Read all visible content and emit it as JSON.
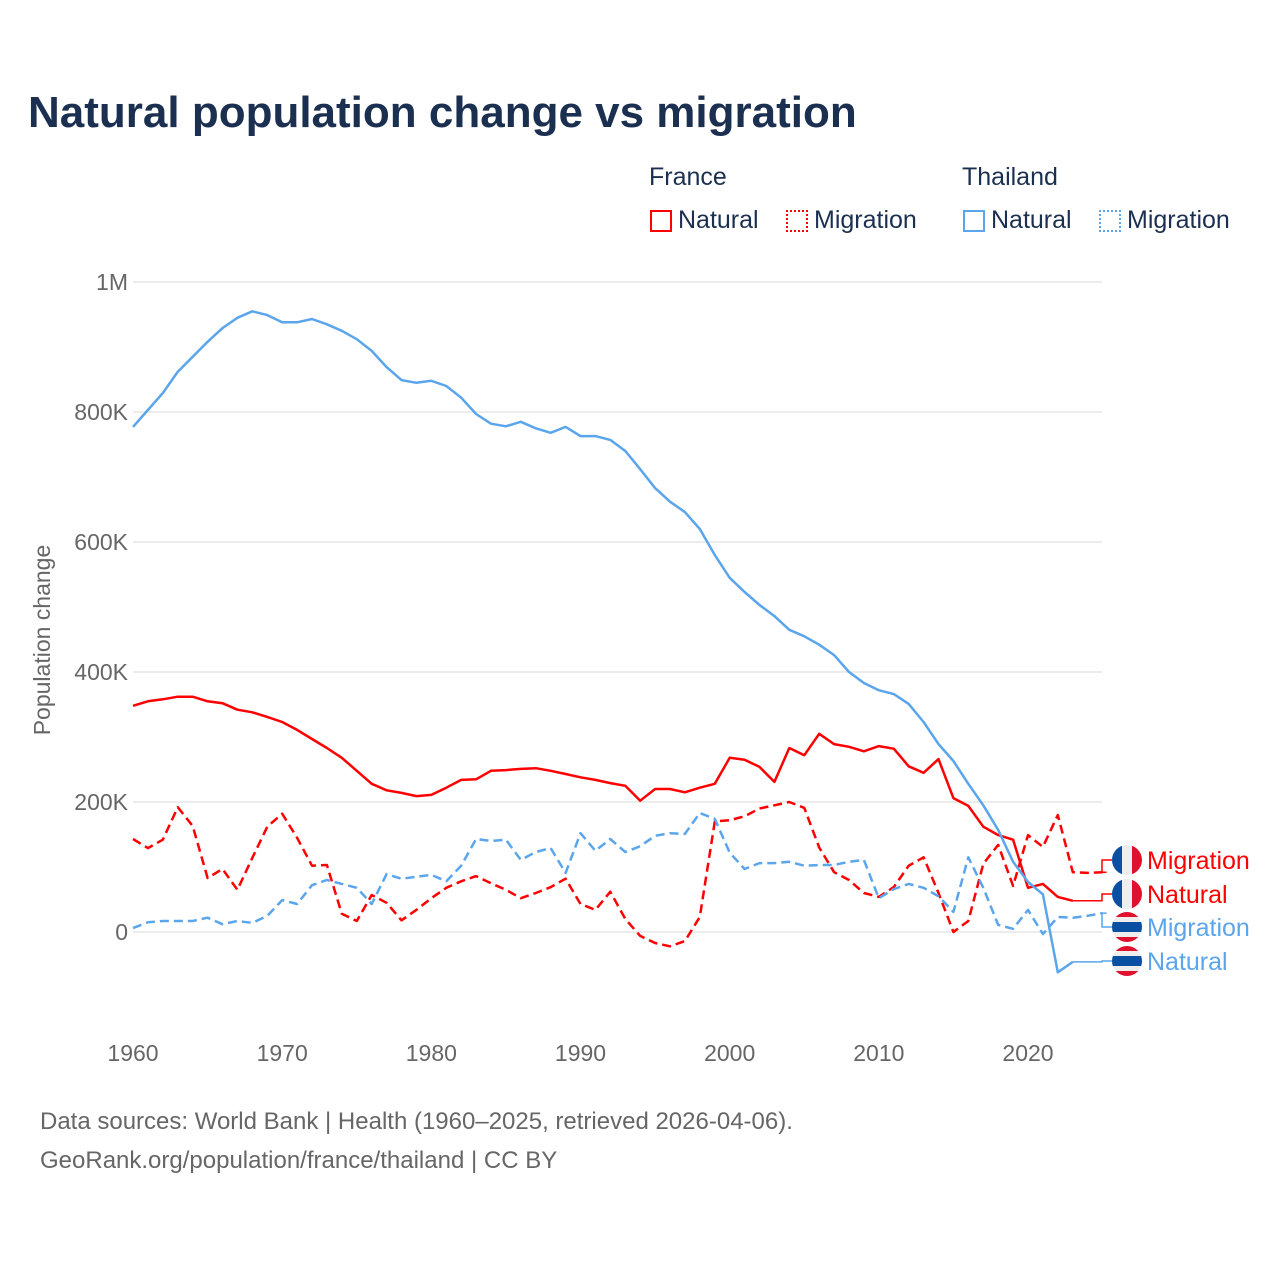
{
  "title": "Natural population change vs migration",
  "legend": {
    "groups": [
      {
        "name": "France",
        "color": "#ff0000",
        "items": [
          "Natural",
          "Migration"
        ]
      },
      {
        "name": "Thailand",
        "color": "#5aa5ec",
        "items": [
          "Natural",
          "Migration"
        ]
      }
    ]
  },
  "source_line1": "Data sources: World Bank | Health (1960–2025, retrieved 2026-04-06).",
  "source_line2": "GeoRank.org/population/france/thailand | CC BY",
  "chart_data": {
    "type": "line",
    "title": "Natural population change vs migration",
    "xlabel": "",
    "ylabel": "Population change",
    "xlim": [
      1960,
      2025
    ],
    "ylim": [
      -100000,
      1000000
    ],
    "xticks": [
      1960,
      1970,
      1980,
      1990,
      2000,
      2010,
      2020
    ],
    "yticks": [
      {
        "v": 0,
        "l": "0"
      },
      {
        "v": 200000,
        "l": "200K"
      },
      {
        "v": 400000,
        "l": "400K"
      },
      {
        "v": 600000,
        "l": "600K"
      },
      {
        "v": 800000,
        "l": "800K"
      },
      {
        "v": 1000000,
        "l": "1M"
      }
    ],
    "grid": true,
    "series": [
      {
        "name": "France Natural",
        "label": "Natural",
        "country": "France",
        "color": "#ff0000",
        "dash": false,
        "start": 1960,
        "values_k": [
          348,
          355,
          358,
          362,
          362,
          355,
          352,
          342,
          338,
          331,
          323,
          311,
          297,
          283,
          268,
          248,
          228,
          218,
          214,
          209,
          211,
          222,
          234,
          235,
          248,
          249,
          251,
          252,
          248,
          243,
          238,
          234,
          229,
          225,
          202,
          220,
          220,
          215,
          222,
          228,
          268,
          265,
          254,
          231,
          283,
          272,
          305,
          289,
          285,
          278,
          286,
          282,
          255,
          245,
          266,
          206,
          194,
          162,
          149,
          142,
          68,
          74,
          54,
          48
        ]
      },
      {
        "name": "France Migration",
        "label": "Migration",
        "country": "France",
        "color": "#ff0000",
        "dash": true,
        "start": 1960,
        "values_k": [
          143,
          129,
          142,
          192,
          163,
          83,
          97,
          65,
          114,
          162,
          182,
          145,
          102,
          103,
          28,
          17,
          57,
          45,
          18,
          34,
          52,
          68,
          78,
          86,
          75,
          65,
          52,
          60,
          69,
          82,
          43,
          34,
          62,
          20,
          -6,
          -17,
          -22,
          -14,
          23,
          170,
          172,
          178,
          190,
          195,
          200,
          191,
          130,
          92,
          80,
          60,
          54,
          69,
          102,
          115,
          60,
          0,
          17,
          105,
          134,
          71,
          149,
          131,
          180,
          92,
          91,
          92
        ]
      },
      {
        "name": "Thailand Natural",
        "label": "Natural",
        "country": "Thailand",
        "color": "#5aa5ec",
        "dash": false,
        "start": 1960,
        "values_k": [
          777,
          803,
          829,
          862,
          885,
          908,
          929,
          945,
          955,
          949,
          938,
          938,
          943,
          935,
          925,
          912,
          894,
          869,
          849,
          845,
          848,
          840,
          822,
          797,
          782,
          778,
          785,
          775,
          768,
          777,
          763,
          763,
          757,
          740,
          712,
          683,
          662,
          646,
          620,
          580,
          545,
          523,
          503,
          486,
          465,
          455,
          442,
          426,
          400,
          383,
          372,
          366,
          351,
          323,
          289,
          263,
          228,
          195,
          157,
          108,
          77,
          58,
          -62,
          -46
        ]
      },
      {
        "name": "Thailand Migration",
        "label": "Migration",
        "country": "Thailand",
        "color": "#5aa5ec",
        "dash": true,
        "start": 1960,
        "values_k": [
          6,
          15,
          17,
          17,
          17,
          22,
          12,
          17,
          14,
          25,
          49,
          43,
          72,
          80,
          74,
          68,
          43,
          89,
          82,
          85,
          88,
          78,
          102,
          143,
          140,
          142,
          111,
          123,
          129,
          91,
          152,
          125,
          143,
          123,
          132,
          148,
          152,
          151,
          183,
          174,
          122,
          97,
          106,
          106,
          108,
          102,
          103,
          103,
          108,
          111,
          52,
          66,
          74,
          68,
          55,
          31,
          115,
          68,
          11,
          5,
          34,
          -3,
          23,
          22,
          25,
          29
        ]
      }
    ],
    "end_labels": [
      {
        "text": "Migration",
        "series": 1,
        "flag": "france"
      },
      {
        "text": "Natural",
        "series": 0,
        "flag": "france"
      },
      {
        "text": "Migration",
        "series": 3,
        "flag": "thailand"
      },
      {
        "text": "Natural",
        "series": 2,
        "flag": "thailand"
      }
    ]
  }
}
